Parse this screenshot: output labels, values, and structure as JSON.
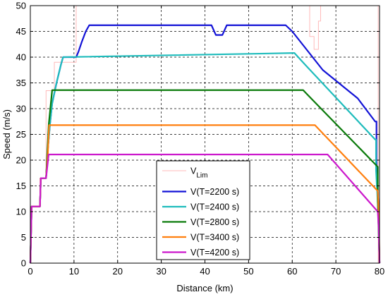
{
  "chart_data": {
    "type": "line",
    "xlabel": "Distance (km)",
    "ylabel": "Speed (m/s)",
    "xlim": [
      0,
      80
    ],
    "ylim": [
      0,
      50
    ],
    "xticks": [
      "0",
      "10",
      "20",
      "30",
      "40",
      "50",
      "60",
      "70",
      "80"
    ],
    "yticks": [
      "0",
      "5",
      "10",
      "15",
      "20",
      "25",
      "30",
      "35",
      "40",
      "45",
      "50"
    ],
    "grid": true,
    "legend_position": "bottom-center",
    "series": [
      {
        "name": "V",
        "name_sub": "Lim",
        "color": "#ffbaba",
        "style": "thin",
        "points": [
          [
            0,
            11
          ],
          [
            2.2,
            11
          ],
          [
            2.2,
            16.5
          ],
          [
            3.6,
            16.5
          ],
          [
            3.6,
            33.5
          ],
          [
            5.5,
            33.5
          ],
          [
            5.5,
            39
          ],
          [
            10.5,
            39
          ],
          [
            10.5,
            50
          ],
          [
            64,
            50
          ],
          [
            64,
            47
          ],
          [
            64,
            44
          ],
          [
            65,
            44
          ],
          [
            65,
            41.5
          ],
          [
            66,
            41.5
          ],
          [
            66,
            47
          ],
          [
            66.5,
            47
          ],
          [
            66.5,
            50
          ],
          [
            79.7,
            50
          ],
          [
            79.7,
            20
          ],
          [
            79.7,
            0
          ]
        ]
      },
      {
        "name": "V(T=2200 s)",
        "color": "#1212d6",
        "points": [
          [
            0,
            0
          ],
          [
            0.3,
            11
          ],
          [
            2.2,
            11
          ],
          [
            2.4,
            16.5
          ],
          [
            3.6,
            16.5
          ],
          [
            4,
            22
          ],
          [
            4.5,
            27
          ],
          [
            5,
            31
          ],
          [
            6,
            35
          ],
          [
            7,
            38.5
          ],
          [
            7.5,
            40
          ],
          [
            10.5,
            40
          ],
          [
            11,
            41
          ],
          [
            11.8,
            43
          ],
          [
            12.7,
            45
          ],
          [
            13.5,
            46.2
          ],
          [
            41.5,
            46.2
          ],
          [
            42.5,
            44.3
          ],
          [
            44,
            44.3
          ],
          [
            45,
            46.2
          ],
          [
            58.5,
            46.2
          ],
          [
            60,
            45
          ],
          [
            67,
            37.5
          ],
          [
            75,
            32
          ],
          [
            79,
            27.5
          ],
          [
            79.3,
            27.5
          ],
          [
            79.3,
            20
          ],
          [
            79.7,
            12
          ],
          [
            80,
            0
          ]
        ]
      },
      {
        "name": "V(T=2400 s)",
        "color": "#1fbcbc",
        "points": [
          [
            0,
            0
          ],
          [
            0.3,
            11
          ],
          [
            2.2,
            11
          ],
          [
            2.4,
            16.5
          ],
          [
            3.6,
            16.5
          ],
          [
            4,
            22
          ],
          [
            4.5,
            27
          ],
          [
            5,
            31
          ],
          [
            6,
            35
          ],
          [
            7,
            38.5
          ],
          [
            7.5,
            40
          ],
          [
            60.5,
            40.8
          ],
          [
            63,
            38.5
          ],
          [
            79,
            24
          ],
          [
            79.2,
            24
          ],
          [
            79.2,
            18
          ],
          [
            79.7,
            10
          ],
          [
            80,
            0
          ]
        ]
      },
      {
        "name": "V(T=2800 s)",
        "color": "#0a7a0a",
        "points": [
          [
            0,
            0
          ],
          [
            0.3,
            11
          ],
          [
            2.2,
            11
          ],
          [
            2.4,
            16.5
          ],
          [
            3.6,
            16.5
          ],
          [
            4.2,
            26.8
          ],
          [
            5,
            33.6
          ],
          [
            62.5,
            33.6
          ],
          [
            63.5,
            32.7
          ],
          [
            79.6,
            18.7
          ],
          [
            79.6,
            12
          ],
          [
            80,
            0
          ]
        ]
      },
      {
        "name": "V(T=3400 s)",
        "color": "#ff7f0e",
        "points": [
          [
            0,
            0
          ],
          [
            0.3,
            11
          ],
          [
            2.2,
            11
          ],
          [
            2.4,
            16.5
          ],
          [
            3.6,
            16.5
          ],
          [
            4,
            21
          ],
          [
            4.3,
            26.8
          ],
          [
            65.2,
            26.8
          ],
          [
            79.6,
            14
          ],
          [
            79.8,
            10
          ],
          [
            80,
            0
          ]
        ]
      },
      {
        "name": "V(T=4200 s)",
        "color": "#cc18cc",
        "points": [
          [
            0,
            0
          ],
          [
            0.3,
            11
          ],
          [
            2.2,
            11
          ],
          [
            2.4,
            16.5
          ],
          [
            3.6,
            16.5
          ],
          [
            4.2,
            21.1
          ],
          [
            68.1,
            21.1
          ],
          [
            79.6,
            10
          ],
          [
            79.8,
            7
          ],
          [
            80,
            0
          ]
        ]
      }
    ]
  }
}
